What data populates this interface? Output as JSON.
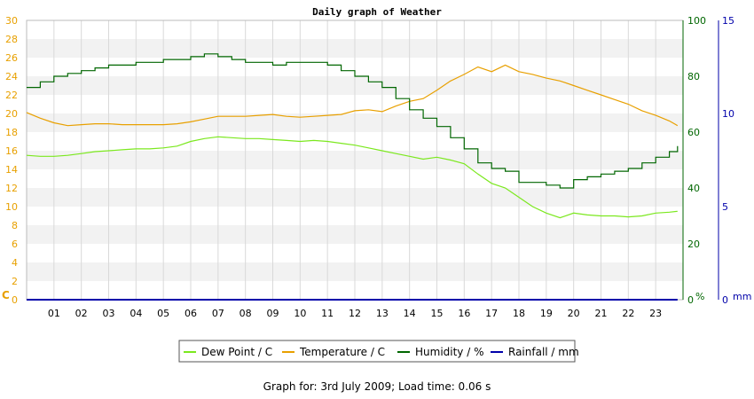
{
  "footer_text": "Graph for: 3rd July 2009; Load time: 0.06 s",
  "chart_data": {
    "type": "line",
    "title": "Daily graph of Weather",
    "grid": true,
    "legend_position": "bottom-center",
    "x_ticks": [
      "01",
      "02",
      "03",
      "04",
      "05",
      "06",
      "07",
      "08",
      "09",
      "10",
      "11",
      "12",
      "13",
      "14",
      "15",
      "16",
      "17",
      "18",
      "19",
      "20",
      "21",
      "22",
      "23"
    ],
    "xlim": [
      0,
      24
    ],
    "left_axis": {
      "unit_label": "C",
      "color": "#e8a000",
      "ylim": [
        0,
        30
      ],
      "ticks": [
        "0",
        "2",
        "4",
        "6",
        "8",
        "10",
        "12",
        "14",
        "16",
        "18",
        "20",
        "22",
        "24",
        "26",
        "28",
        "30"
      ]
    },
    "right_axis_humidity": {
      "unit_label": "%",
      "color": "#006600",
      "ylim": [
        0,
        100
      ],
      "ticks": [
        "0",
        "20",
        "40",
        "60",
        "80",
        "100"
      ]
    },
    "right_axis_rain": {
      "unit_label": "mm",
      "color": "#0000aa",
      "ylim": [
        0,
        15
      ],
      "ticks": [
        "0",
        "5",
        "10",
        "15"
      ]
    },
    "series": [
      {
        "name": "Dew Point / C",
        "color": "#7be81e",
        "axis": "left",
        "x": [
          0,
          0.5,
          1,
          1.5,
          2,
          2.5,
          3,
          3.5,
          4,
          4.5,
          5,
          5.5,
          6,
          6.5,
          7,
          7.5,
          8,
          8.5,
          9,
          9.5,
          10,
          10.5,
          11,
          11.5,
          12,
          12.5,
          13,
          13.5,
          14,
          14.5,
          15,
          15.5,
          16,
          16.5,
          17,
          17.5,
          18,
          18.5,
          19,
          19.5,
          20,
          20.5,
          21,
          21.5,
          22,
          22.5,
          23,
          23.5,
          23.8
        ],
        "values": [
          15.5,
          15.4,
          15.4,
          15.5,
          15.7,
          15.9,
          16.0,
          16.1,
          16.2,
          16.2,
          16.3,
          16.5,
          17.0,
          17.3,
          17.5,
          17.4,
          17.3,
          17.3,
          17.2,
          17.1,
          17.0,
          17.1,
          17.0,
          16.8,
          16.6,
          16.3,
          16.0,
          15.7,
          15.4,
          15.1,
          15.3,
          15.0,
          14.6,
          13.5,
          12.5,
          12.0,
          11.0,
          10.0,
          9.3,
          8.8,
          9.3,
          9.1,
          9.0,
          9.0,
          8.9,
          9.0,
          9.3,
          9.4,
          9.5
        ]
      },
      {
        "name": "Temperature / C",
        "color": "#e8a000",
        "axis": "left",
        "x": [
          0,
          0.5,
          1,
          1.5,
          2,
          2.5,
          3,
          3.5,
          4,
          4.5,
          5,
          5.5,
          6,
          6.5,
          7,
          7.5,
          8,
          8.5,
          9,
          9.5,
          10,
          10.5,
          11,
          11.5,
          12,
          12.5,
          13,
          13.5,
          14,
          14.5,
          15,
          15.5,
          16,
          16.5,
          17,
          17.5,
          18,
          18.5,
          19,
          19.5,
          20,
          20.5,
          21,
          21.5,
          22,
          22.5,
          23,
          23.5,
          23.8
        ],
        "values": [
          20.1,
          19.5,
          19.0,
          18.7,
          18.8,
          18.9,
          18.9,
          18.8,
          18.8,
          18.8,
          18.8,
          18.9,
          19.1,
          19.4,
          19.7,
          19.7,
          19.7,
          19.8,
          19.9,
          19.7,
          19.6,
          19.7,
          19.8,
          19.9,
          20.3,
          20.4,
          20.2,
          20.8,
          21.3,
          21.6,
          22.5,
          23.5,
          24.2,
          25.0,
          24.5,
          25.2,
          24.5,
          24.2,
          23.8,
          23.5,
          23.0,
          22.5,
          22.0,
          21.5,
          21.0,
          20.3,
          19.8,
          19.2,
          18.7
        ]
      },
      {
        "name": "Humidity / %",
        "color": "#006600",
        "axis": "right",
        "x": [
          0,
          0.5,
          1,
          1.5,
          2,
          2.5,
          3,
          3.5,
          4,
          4.5,
          5,
          5.5,
          6,
          6.5,
          7,
          7.5,
          8,
          8.5,
          9,
          9.5,
          10,
          10.5,
          11,
          11.5,
          12,
          12.5,
          13,
          13.5,
          14,
          14.5,
          15,
          15.5,
          16,
          16.5,
          17,
          17.5,
          18,
          18.5,
          19,
          19.5,
          20,
          20.5,
          21,
          21.5,
          22,
          22.5,
          23,
          23.5,
          23.8
        ],
        "values": [
          76,
          78,
          80,
          81,
          82,
          83,
          84,
          84,
          85,
          85,
          86,
          86,
          87,
          88,
          87,
          86,
          85,
          85,
          84,
          85,
          85,
          85,
          84,
          82,
          80,
          78,
          76,
          72,
          68,
          65,
          62,
          58,
          54,
          49,
          47,
          46,
          42,
          42,
          41,
          40,
          43,
          44,
          45,
          46,
          47,
          49,
          51,
          53,
          55
        ]
      },
      {
        "name": "Rainfall / mm",
        "color": "#0000aa",
        "axis": "right_rain",
        "x": [
          0,
          23.8
        ],
        "values": [
          0,
          0
        ]
      }
    ]
  }
}
